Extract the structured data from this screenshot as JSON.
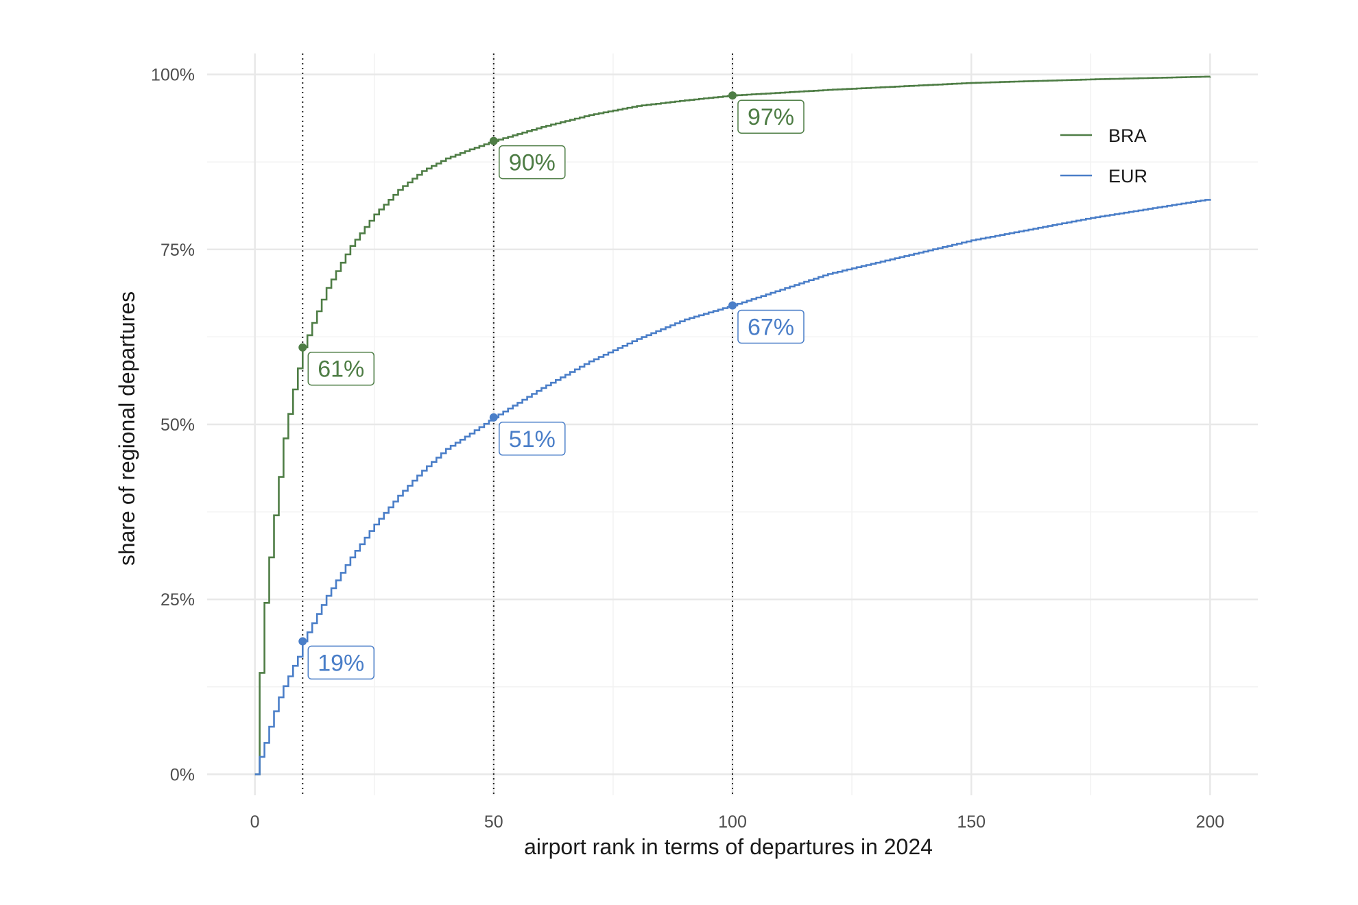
{
  "chart_data": {
    "type": "line",
    "xlabel": "airport rank in terms of departures in 2024",
    "ylabel": "share of regional departures",
    "xlim": [
      -10,
      210
    ],
    "ylim": [
      -0.03,
      1.03
    ],
    "x_ticks": [
      0,
      50,
      100,
      150,
      200
    ],
    "x_tick_labels": [
      "0",
      "50",
      "100",
      "150",
      "200"
    ],
    "y_ticks": [
      0,
      0.25,
      0.5,
      0.75,
      1.0
    ],
    "y_tick_labels": [
      "0%",
      "25%",
      "50%",
      "75%",
      "100%"
    ],
    "grid": true,
    "step": true,
    "reference_lines_x": [
      10,
      50,
      100
    ],
    "legend_position": "top-right",
    "series": [
      {
        "name": "BRA",
        "color": "#4e7d45",
        "points": [
          [
            0,
            0
          ],
          [
            1,
            0.145
          ],
          [
            2,
            0.245
          ],
          [
            3,
            0.31
          ],
          [
            4,
            0.37
          ],
          [
            5,
            0.425
          ],
          [
            6,
            0.48
          ],
          [
            7,
            0.515
          ],
          [
            8,
            0.55
          ],
          [
            9,
            0.58
          ],
          [
            10,
            0.61
          ],
          [
            12,
            0.645
          ],
          [
            15,
            0.695
          ],
          [
            20,
            0.755
          ],
          [
            25,
            0.8
          ],
          [
            30,
            0.835
          ],
          [
            35,
            0.862
          ],
          [
            40,
            0.88
          ],
          [
            45,
            0.893
          ],
          [
            50,
            0.905
          ],
          [
            60,
            0.925
          ],
          [
            70,
            0.942
          ],
          [
            80,
            0.955
          ],
          [
            90,
            0.963
          ],
          [
            100,
            0.97
          ],
          [
            120,
            0.978
          ],
          [
            150,
            0.988
          ],
          [
            175,
            0.993
          ],
          [
            200,
            0.997
          ]
        ]
      },
      {
        "name": "EUR",
        "color": "#4a7ec8",
        "points": [
          [
            0,
            0
          ],
          [
            1,
            0.025
          ],
          [
            2,
            0.045
          ],
          [
            3,
            0.068
          ],
          [
            4,
            0.09
          ],
          [
            5,
            0.11
          ],
          [
            6,
            0.126
          ],
          [
            7,
            0.14
          ],
          [
            8,
            0.155
          ],
          [
            9,
            0.168
          ],
          [
            10,
            0.19
          ],
          [
            15,
            0.255
          ],
          [
            20,
            0.31
          ],
          [
            25,
            0.357
          ],
          [
            30,
            0.398
          ],
          [
            35,
            0.434
          ],
          [
            40,
            0.465
          ],
          [
            45,
            0.487
          ],
          [
            50,
            0.51
          ],
          [
            60,
            0.552
          ],
          [
            70,
            0.59
          ],
          [
            80,
            0.622
          ],
          [
            90,
            0.65
          ],
          [
            100,
            0.67
          ],
          [
            120,
            0.715
          ],
          [
            150,
            0.763
          ],
          [
            175,
            0.795
          ],
          [
            200,
            0.822
          ]
        ]
      }
    ],
    "annotations": [
      {
        "series": "BRA",
        "x": 10,
        "y": 0.61,
        "label": "61%"
      },
      {
        "series": "BRA",
        "x": 50,
        "y": 0.905,
        "label": "90%"
      },
      {
        "series": "BRA",
        "x": 100,
        "y": 0.97,
        "label": "97%"
      },
      {
        "series": "EUR",
        "x": 10,
        "y": 0.19,
        "label": "19%"
      },
      {
        "series": "EUR",
        "x": 50,
        "y": 0.51,
        "label": "51%"
      },
      {
        "series": "EUR",
        "x": 100,
        "y": 0.67,
        "label": "67%"
      }
    ]
  }
}
